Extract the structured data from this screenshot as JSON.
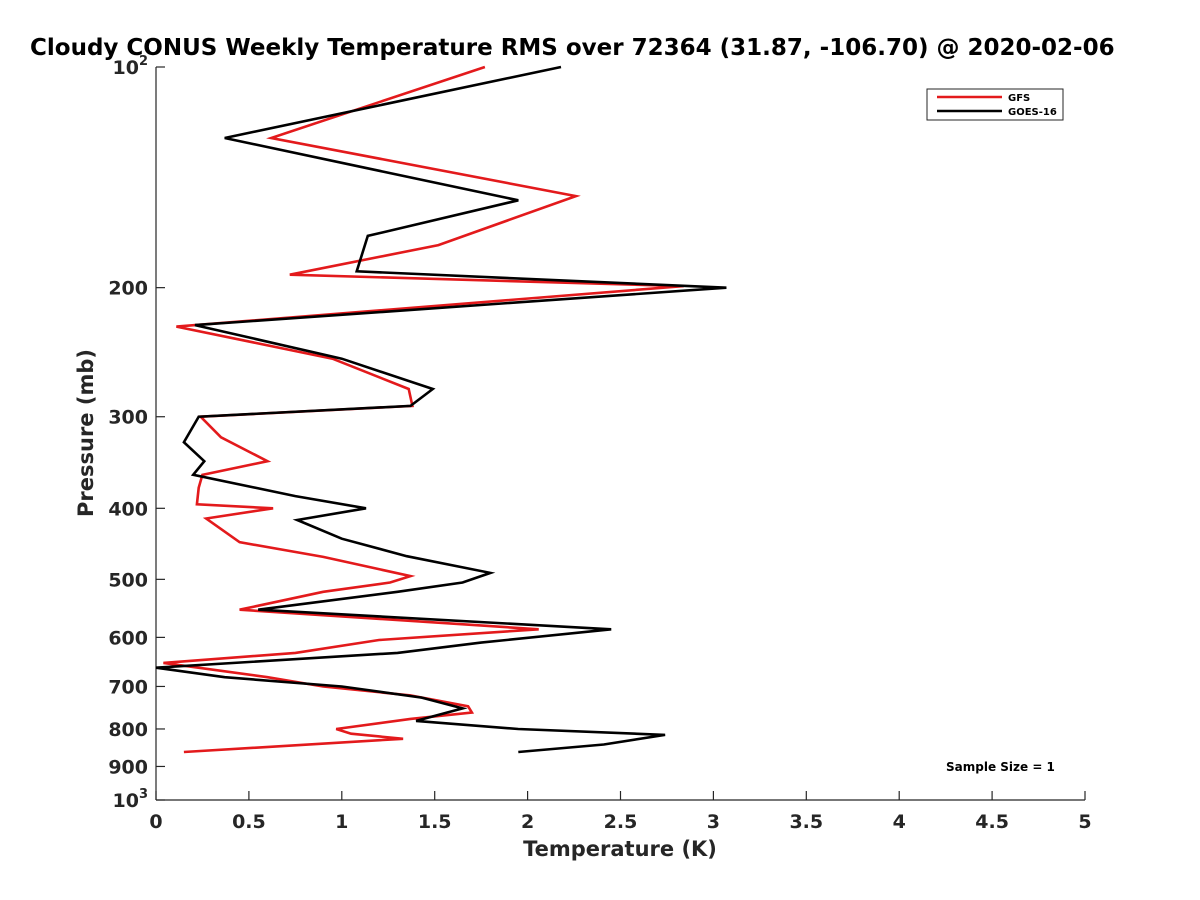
{
  "chart_data": {
    "type": "line",
    "title": "Cloudy CONUS Weekly Temperature RMS over 72364 (31.87, -106.70) @ 2020-02-06",
    "xlabel": "Temperature (K)",
    "ylabel": "Pressure (mb)",
    "xlim": [
      0,
      5
    ],
    "ylim": [
      100,
      1000
    ],
    "y_scale": "log",
    "y_reversed": true,
    "grid": false,
    "legend_position": "top-right",
    "x_ticks": [
      "0",
      "0.5",
      "1",
      "1.5",
      "2",
      "2.5",
      "3",
      "3.5",
      "4",
      "4.5",
      "5"
    ],
    "y_ticks": [
      {
        "value": 100,
        "base": "10",
        "exp": "2"
      },
      {
        "value": 200,
        "label": "200"
      },
      {
        "value": 300,
        "label": "300"
      },
      {
        "value": 400,
        "label": "400"
      },
      {
        "value": 500,
        "label": "500"
      },
      {
        "value": 600,
        "label": "600"
      },
      {
        "value": 700,
        "label": "700"
      },
      {
        "value": 800,
        "label": "800"
      },
      {
        "value": 900,
        "label": "900"
      },
      {
        "value": 1000,
        "base": "10",
        "exp": "3"
      }
    ],
    "annotation": "Sample Size = 1",
    "series": [
      {
        "name": "GFS",
        "color": "#e31a1c",
        "points": [
          [
            1.77,
            100
          ],
          [
            0.62,
            125
          ],
          [
            2.26,
            150
          ],
          [
            1.52,
            175
          ],
          [
            0.72,
            192
          ],
          [
            2.84,
            199
          ],
          [
            0.11,
            226
          ],
          [
            0.95,
            250
          ],
          [
            1.36,
            275
          ],
          [
            1.38,
            290
          ],
          [
            0.24,
            300
          ],
          [
            0.35,
            320
          ],
          [
            0.6,
            345
          ],
          [
            0.25,
            360
          ],
          [
            0.23,
            375
          ],
          [
            0.22,
            395
          ],
          [
            0.63,
            400
          ],
          [
            0.27,
            413
          ],
          [
            0.45,
            445
          ],
          [
            0.9,
            466
          ],
          [
            1.37,
            495
          ],
          [
            1.26,
            505
          ],
          [
            0.9,
            520
          ],
          [
            0.45,
            550
          ],
          [
            2.06,
            585
          ],
          [
            1.2,
            605
          ],
          [
            0.75,
            630
          ],
          [
            0.04,
            650
          ],
          [
            0.6,
            680
          ],
          [
            0.9,
            700
          ],
          [
            1.37,
            720
          ],
          [
            1.68,
            745
          ],
          [
            1.7,
            760
          ],
          [
            1.37,
            775
          ],
          [
            0.97,
            800
          ],
          [
            1.05,
            812
          ],
          [
            1.33,
            825
          ],
          [
            0.15,
            860
          ]
        ]
      },
      {
        "name": "GOES-16",
        "color": "#000000",
        "points": [
          [
            2.18,
            100
          ],
          [
            0.37,
            125
          ],
          [
            1.95,
            152
          ],
          [
            1.14,
            170
          ],
          [
            1.08,
            190
          ],
          [
            3.07,
            200
          ],
          [
            0.21,
            225
          ],
          [
            1.0,
            250
          ],
          [
            1.49,
            275
          ],
          [
            1.37,
            290
          ],
          [
            0.23,
            300
          ],
          [
            0.15,
            325
          ],
          [
            0.26,
            345
          ],
          [
            0.2,
            360
          ],
          [
            0.75,
            385
          ],
          [
            1.13,
            400
          ],
          [
            0.76,
            415
          ],
          [
            1.0,
            440
          ],
          [
            1.35,
            465
          ],
          [
            1.8,
            490
          ],
          [
            1.65,
            505
          ],
          [
            1.3,
            520
          ],
          [
            0.55,
            550
          ],
          [
            2.45,
            585
          ],
          [
            1.75,
            610
          ],
          [
            1.3,
            630
          ],
          [
            0.0,
            660
          ],
          [
            0.37,
            680
          ],
          [
            1.0,
            700
          ],
          [
            1.43,
            725
          ],
          [
            1.65,
            750
          ],
          [
            1.4,
            780
          ],
          [
            1.95,
            800
          ],
          [
            2.74,
            815
          ],
          [
            2.41,
            840
          ],
          [
            1.95,
            860
          ]
        ]
      }
    ]
  }
}
